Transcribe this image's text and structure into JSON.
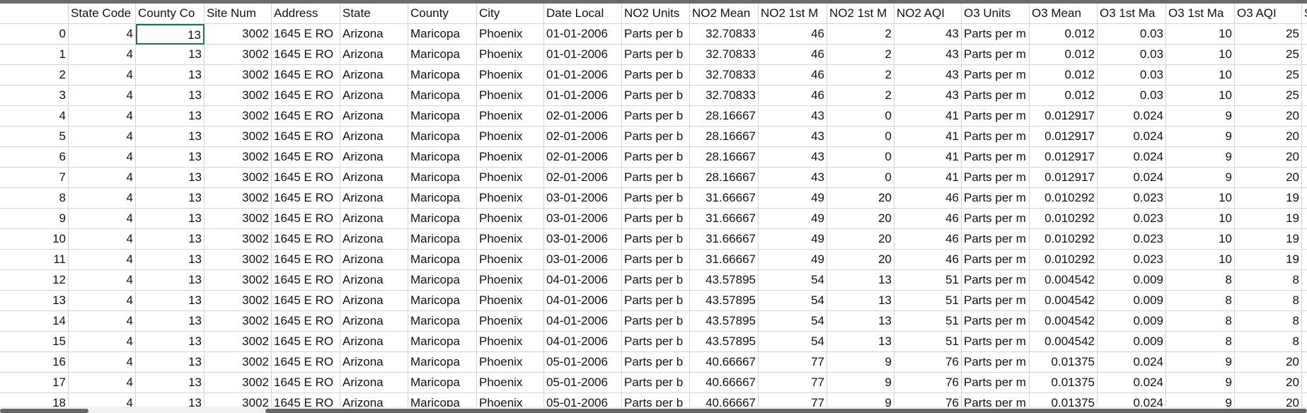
{
  "table": {
    "columns": [
      "State Code",
      "County Co",
      "Site Num",
      "Address",
      "State",
      "County",
      "City",
      "Date Local",
      "NO2 Units",
      "NO2 Mean",
      "NO2 1st M",
      "NO2 1st M",
      "NO2 AQI",
      "O3 Units",
      "O3 Mean",
      "O3 1st Ma",
      "O3 1st Ma",
      "O3 AQI",
      "S"
    ],
    "rows": [
      [
        0,
        4,
        13,
        3002,
        "1645 E RO",
        "Arizona",
        "Maricopa",
        "Phoenix",
        "01-01-2006",
        "Parts per b",
        32.70833,
        46,
        2,
        43,
        "Parts per m",
        0.012,
        0.03,
        10,
        25
      ],
      [
        1,
        4,
        13,
        3002,
        "1645 E RO",
        "Arizona",
        "Maricopa",
        "Phoenix",
        "01-01-2006",
        "Parts per b",
        32.70833,
        46,
        2,
        43,
        "Parts per m",
        0.012,
        0.03,
        10,
        25
      ],
      [
        2,
        4,
        13,
        3002,
        "1645 E RO",
        "Arizona",
        "Maricopa",
        "Phoenix",
        "01-01-2006",
        "Parts per b",
        32.70833,
        46,
        2,
        43,
        "Parts per m",
        0.012,
        0.03,
        10,
        25
      ],
      [
        3,
        4,
        13,
        3002,
        "1645 E RO",
        "Arizona",
        "Maricopa",
        "Phoenix",
        "01-01-2006",
        "Parts per b",
        32.70833,
        46,
        2,
        43,
        "Parts per m",
        0.012,
        0.03,
        10,
        25
      ],
      [
        4,
        4,
        13,
        3002,
        "1645 E RO",
        "Arizona",
        "Maricopa",
        "Phoenix",
        "02-01-2006",
        "Parts per b",
        28.16667,
        43,
        0,
        41,
        "Parts per m",
        0.012917,
        0.024,
        9,
        20
      ],
      [
        5,
        4,
        13,
        3002,
        "1645 E RO",
        "Arizona",
        "Maricopa",
        "Phoenix",
        "02-01-2006",
        "Parts per b",
        28.16667,
        43,
        0,
        41,
        "Parts per m",
        0.012917,
        0.024,
        9,
        20
      ],
      [
        6,
        4,
        13,
        3002,
        "1645 E RO",
        "Arizona",
        "Maricopa",
        "Phoenix",
        "02-01-2006",
        "Parts per b",
        28.16667,
        43,
        0,
        41,
        "Parts per m",
        0.012917,
        0.024,
        9,
        20
      ],
      [
        7,
        4,
        13,
        3002,
        "1645 E RO",
        "Arizona",
        "Maricopa",
        "Phoenix",
        "02-01-2006",
        "Parts per b",
        28.16667,
        43,
        0,
        41,
        "Parts per m",
        0.012917,
        0.024,
        9,
        20
      ],
      [
        8,
        4,
        13,
        3002,
        "1645 E RO",
        "Arizona",
        "Maricopa",
        "Phoenix",
        "03-01-2006",
        "Parts per b",
        31.66667,
        49,
        20,
        46,
        "Parts per m",
        0.010292,
        0.023,
        10,
        19
      ],
      [
        9,
        4,
        13,
        3002,
        "1645 E RO",
        "Arizona",
        "Maricopa",
        "Phoenix",
        "03-01-2006",
        "Parts per b",
        31.66667,
        49,
        20,
        46,
        "Parts per m",
        0.010292,
        0.023,
        10,
        19
      ],
      [
        10,
        4,
        13,
        3002,
        "1645 E RO",
        "Arizona",
        "Maricopa",
        "Phoenix",
        "03-01-2006",
        "Parts per b",
        31.66667,
        49,
        20,
        46,
        "Parts per m",
        0.010292,
        0.023,
        10,
        19
      ],
      [
        11,
        4,
        13,
        3002,
        "1645 E RO",
        "Arizona",
        "Maricopa",
        "Phoenix",
        "03-01-2006",
        "Parts per b",
        31.66667,
        49,
        20,
        46,
        "Parts per m",
        0.010292,
        0.023,
        10,
        19
      ],
      [
        12,
        4,
        13,
        3002,
        "1645 E RO",
        "Arizona",
        "Maricopa",
        "Phoenix",
        "04-01-2006",
        "Parts per b",
        43.57895,
        54,
        13,
        51,
        "Parts per m",
        0.004542,
        0.009,
        8,
        8
      ],
      [
        13,
        4,
        13,
        3002,
        "1645 E RO",
        "Arizona",
        "Maricopa",
        "Phoenix",
        "04-01-2006",
        "Parts per b",
        43.57895,
        54,
        13,
        51,
        "Parts per m",
        0.004542,
        0.009,
        8,
        8
      ],
      [
        14,
        4,
        13,
        3002,
        "1645 E RO",
        "Arizona",
        "Maricopa",
        "Phoenix",
        "04-01-2006",
        "Parts per b",
        43.57895,
        54,
        13,
        51,
        "Parts per m",
        0.004542,
        0.009,
        8,
        8
      ],
      [
        15,
        4,
        13,
        3002,
        "1645 E RO",
        "Arizona",
        "Maricopa",
        "Phoenix",
        "04-01-2006",
        "Parts per b",
        43.57895,
        54,
        13,
        51,
        "Parts per m",
        0.004542,
        0.009,
        8,
        8
      ],
      [
        16,
        4,
        13,
        3002,
        "1645 E RO",
        "Arizona",
        "Maricopa",
        "Phoenix",
        "05-01-2006",
        "Parts per b",
        40.66667,
        77,
        9,
        76,
        "Parts per m",
        0.01375,
        0.024,
        9,
        20
      ],
      [
        17,
        4,
        13,
        3002,
        "1645 E RO",
        "Arizona",
        "Maricopa",
        "Phoenix",
        "05-01-2006",
        "Parts per b",
        40.66667,
        77,
        9,
        76,
        "Parts per m",
        0.01375,
        0.024,
        9,
        20
      ],
      [
        18,
        4,
        13,
        3002,
        "1645 E RO",
        "Arizona",
        "Maricopa",
        "Phoenix",
        "05-01-2006",
        "Parts per b",
        40.66667,
        77,
        9,
        76,
        "Parts per m",
        0.01375,
        0.024,
        9,
        20
      ]
    ]
  }
}
